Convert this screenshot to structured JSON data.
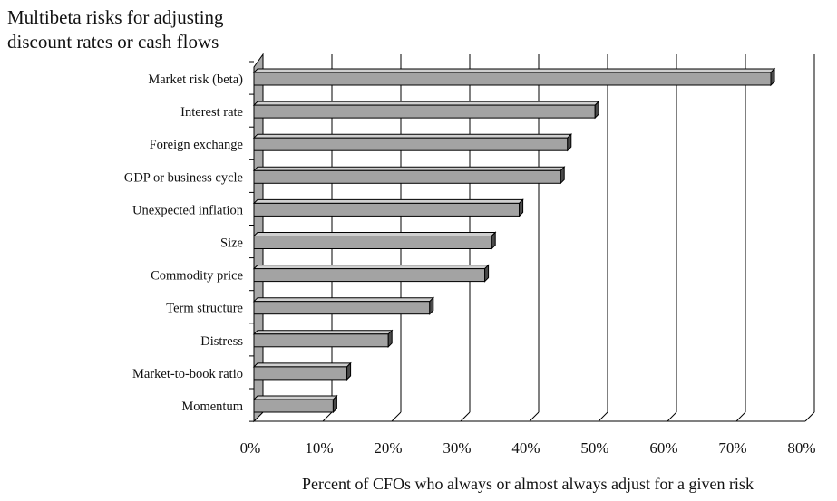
{
  "chart_data": {
    "type": "bar",
    "orientation": "horizontal",
    "title_lines": [
      "Multibeta risks for adjusting",
      "discount rates or cash flows"
    ],
    "xlabel": "Percent of CFOs who always or almost always adjust for a given risk",
    "ylabel": "",
    "xlim": [
      0,
      80
    ],
    "x_ticks": [
      "0%",
      "10%",
      "20%",
      "30%",
      "40%",
      "50%",
      "60%",
      "70%",
      "80%"
    ],
    "grid": "vertical",
    "categories": [
      "Market risk (beta)",
      "Interest rate",
      "Foreign exchange",
      "GDP or business cycle",
      "Unexpected inflation",
      "Size",
      "Commodity price",
      "Term structure",
      "Distress",
      "Market-to-book ratio",
      "Momentum"
    ],
    "values": [
      75,
      49.5,
      45.5,
      44.5,
      38.5,
      34.5,
      33.5,
      25.5,
      19.5,
      13.5,
      11.5
    ],
    "colors": {
      "bar": "#a3a3a3",
      "bar_top": "#cfcfcf",
      "bar_side": "#4a4a4a",
      "axis": "#000000"
    }
  }
}
